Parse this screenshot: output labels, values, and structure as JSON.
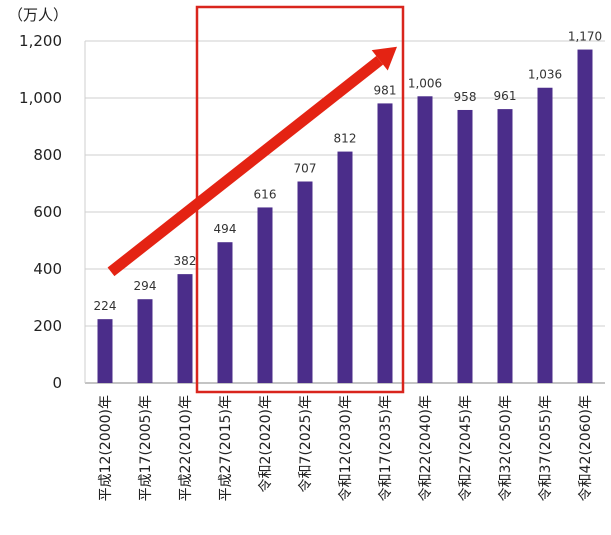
{
  "chart_data": {
    "type": "bar",
    "unit_label": "（万人）",
    "categories": [
      "平成12(2000)年",
      "平成17(2005)年",
      "平成22(2010)年",
      "平成27(2015)年",
      "令和2(2020)年",
      "令和7(2025)年",
      "令和12(2030)年",
      "令和17(2035)年",
      "令和22(2040)年",
      "令和27(2045)年",
      "令和32(2050)年",
      "令和37(2055)年",
      "令和42(2060)年"
    ],
    "values": [
      224,
      294,
      382,
      494,
      616,
      707,
      812,
      981,
      1006,
      958,
      961,
      1036,
      1170
    ],
    "value_labels": [
      "224",
      "294",
      "382",
      "494",
      "616",
      "707",
      "812",
      "981",
      "1,006",
      "958",
      "961",
      "1,036",
      "1,170"
    ],
    "yticks": [
      "0",
      "200",
      "400",
      "600",
      "800",
      "1,000",
      "1,200"
    ],
    "ytick_values": [
      0,
      200,
      400,
      600,
      800,
      1000,
      1200
    ],
    "ylim": [
      0,
      1200
    ],
    "grid": true,
    "highlight_range": [
      3,
      7
    ],
    "trend_arrow": {
      "from_value": 390,
      "to_value": 1180,
      "from_category": 0,
      "to_category": 7
    },
    "colors": {
      "bar": "#4b2d8a",
      "highlight": "#d9251d",
      "arrow": "#e42313",
      "grid": "#cfcfcf"
    }
  }
}
